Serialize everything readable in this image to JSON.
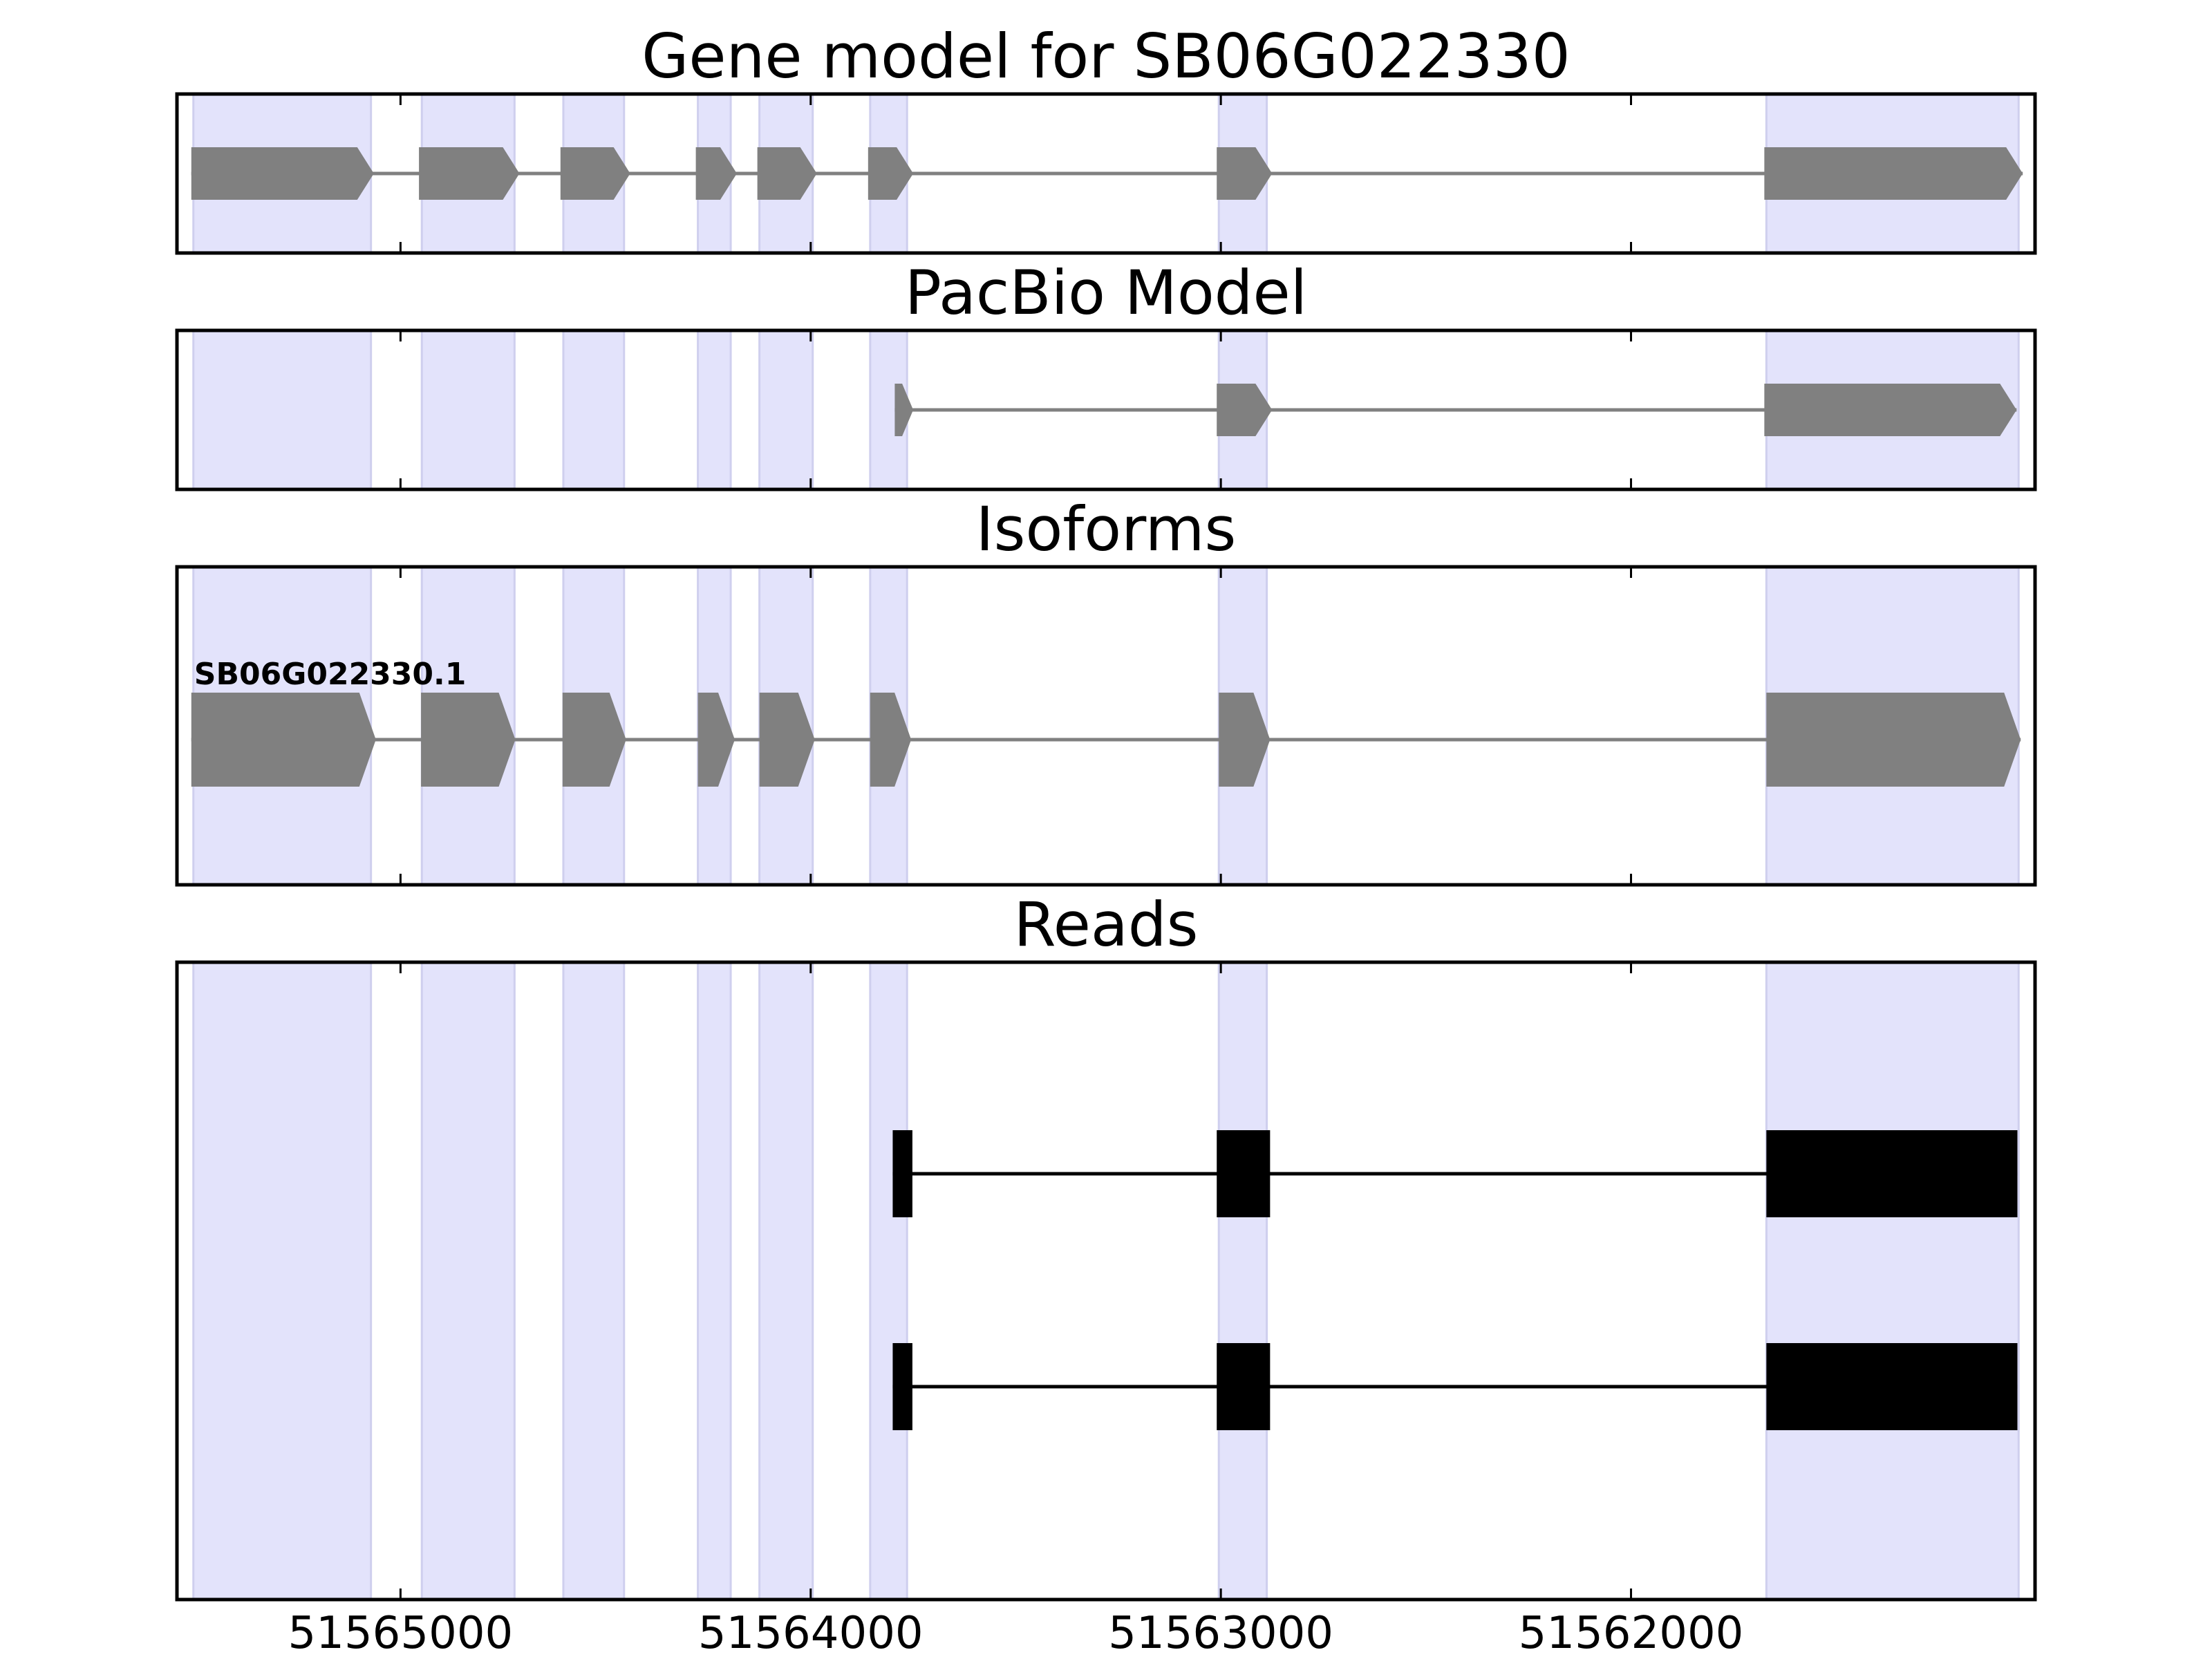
{
  "chart_data": {
    "type": "gene_model_tracks",
    "strand": "minus",
    "x_ticks": [
      51565000,
      51564000,
      51563000,
      51562000
    ],
    "x_tick_labels": [
      "51565000",
      "51564000",
      "51563000",
      "51562000"
    ],
    "xlim": [
      51565545,
      51561015
    ],
    "colors": {
      "exon_highlight": "#e3e3fb",
      "exon_highlight_edge": "#cfcfee",
      "model_feature": "#808080",
      "read_feature": "#000000",
      "axis": "#000000"
    },
    "exon_highlights": [
      [
        51565505,
        51565072
      ],
      [
        51564948,
        51564722
      ],
      [
        51564603,
        51564455
      ],
      [
        51564275,
        51564195
      ],
      [
        51564125,
        51563995
      ],
      [
        51563855,
        51563765
      ],
      [
        51563005,
        51562888
      ],
      [
        51561670,
        51561055
      ]
    ],
    "panels": [
      {
        "id": "gene-model",
        "title": "Gene model for SB06G022330",
        "style": "arrow",
        "rows": [
          {
            "label": "",
            "exons": [
              [
                51565510,
                51565065
              ],
              [
                51564955,
                51564710
              ],
              [
                51564610,
                51564440
              ],
              [
                51564280,
                51564180
              ],
              [
                51564130,
                51563985
              ],
              [
                51563860,
                51563750
              ],
              [
                51563010,
                51562875
              ],
              [
                51561675,
                51561045
              ]
            ]
          }
        ]
      },
      {
        "id": "pacbio-model",
        "title": "PacBio Model",
        "style": "arrow",
        "rows": [
          {
            "label": "",
            "exons": [
              [
                51563795,
                51563750
              ],
              [
                51563010,
                51562875
              ],
              [
                51561675,
                51561060
              ]
            ]
          }
        ]
      },
      {
        "id": "isoforms",
        "title": "Isoforms",
        "style": "arrow",
        "rows": [
          {
            "label": "SB06G022330.1",
            "exons": [
              [
                51565510,
                51565060
              ],
              [
                51564950,
                51564720
              ],
              [
                51564605,
                51564450
              ],
              [
                51564275,
                51564185
              ],
              [
                51564125,
                51563990
              ],
              [
                51563855,
                51563755
              ],
              [
                51563005,
                51562880
              ],
              [
                51561670,
                51561050
              ]
            ]
          }
        ]
      },
      {
        "id": "reads",
        "title": "Reads",
        "style": "block",
        "rows": [
          {
            "label": "",
            "exons": [
              [
                51563800,
                51563752
              ],
              [
                51563010,
                51562880
              ],
              [
                51561670,
                51561058
              ]
            ]
          },
          {
            "label": "",
            "exons": [
              [
                51563800,
                51563752
              ],
              [
                51563010,
                51562880
              ],
              [
                51561670,
                51561058
              ]
            ]
          }
        ]
      }
    ]
  }
}
